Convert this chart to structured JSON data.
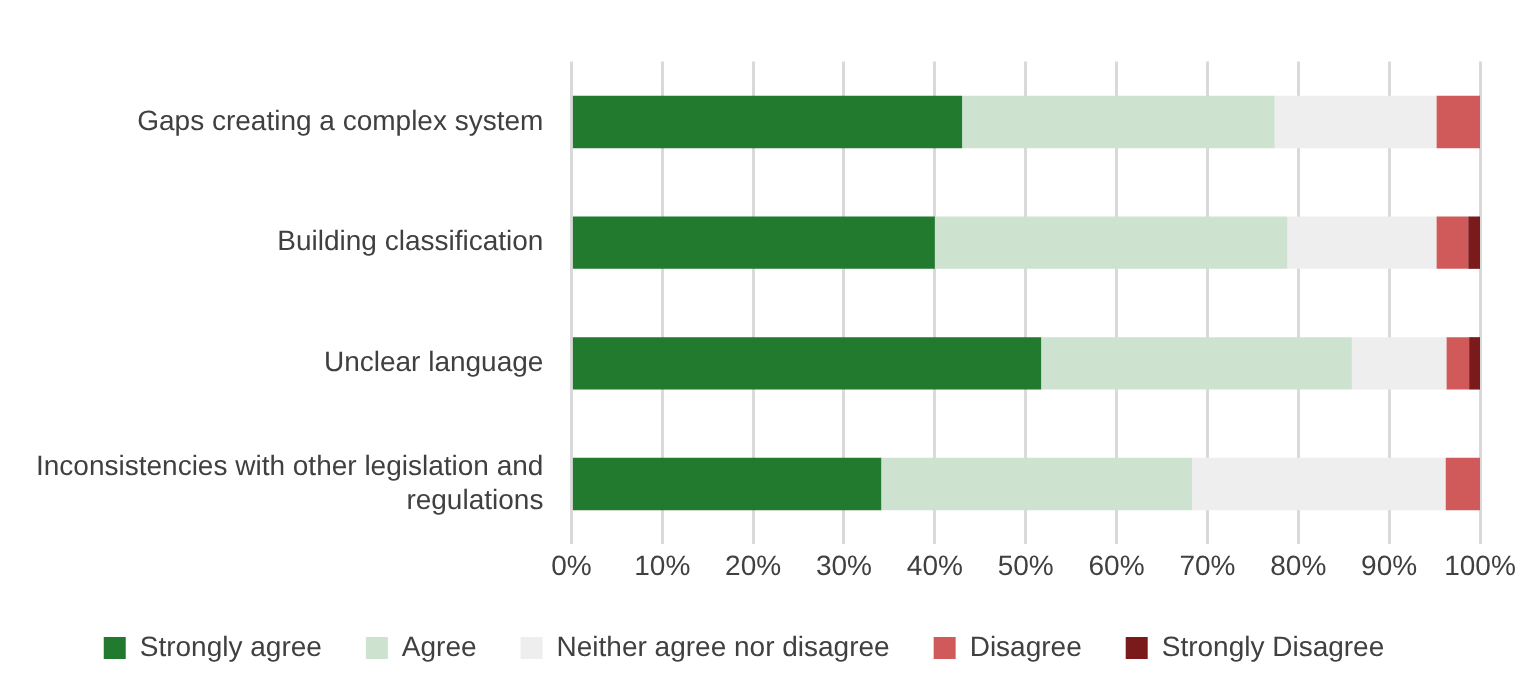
{
  "chart_data": {
    "type": "bar",
    "orientation": "horizontal",
    "stacked": true,
    "categories": [
      "Gaps creating a complex system",
      "Building classification",
      "Unclear language",
      "Inconsistencies with other legislation and regulations"
    ],
    "series": [
      {
        "name": "Strongly agree",
        "color": "#217a2e",
        "values": [
          43,
          40,
          51.7,
          34.1
        ]
      },
      {
        "name": "Agree",
        "color": "#cde3d0",
        "values": [
          34.4,
          38.8,
          34.2,
          34.2
        ]
      },
      {
        "name": "Neither agree nor disagree",
        "color": "#eeeeee",
        "values": [
          17.8,
          16.4,
          10.4,
          27.9
        ]
      },
      {
        "name": "Disagree",
        "color": "#d05a5a",
        "values": [
          4.8,
          3.5,
          2.5,
          3.8
        ]
      },
      {
        "name": "Strongly Disagree",
        "color": "#7a1a1a",
        "values": [
          0,
          1.3,
          1.2,
          0
        ]
      }
    ],
    "xlim": [
      0,
      100
    ],
    "xticks": [
      {
        "value": 0,
        "label": "0%"
      },
      {
        "value": 10,
        "label": "10%"
      },
      {
        "value": 20,
        "label": "20%"
      },
      {
        "value": 30,
        "label": "30%"
      },
      {
        "value": 40,
        "label": "40%"
      },
      {
        "value": 50,
        "label": "50%"
      },
      {
        "value": 60,
        "label": "60%"
      },
      {
        "value": 70,
        "label": "70%"
      },
      {
        "value": 80,
        "label": "80%"
      },
      {
        "value": 90,
        "label": "90%"
      },
      {
        "value": 100,
        "label": "100%"
      }
    ],
    "grid": "x",
    "legend": "bottom"
  }
}
